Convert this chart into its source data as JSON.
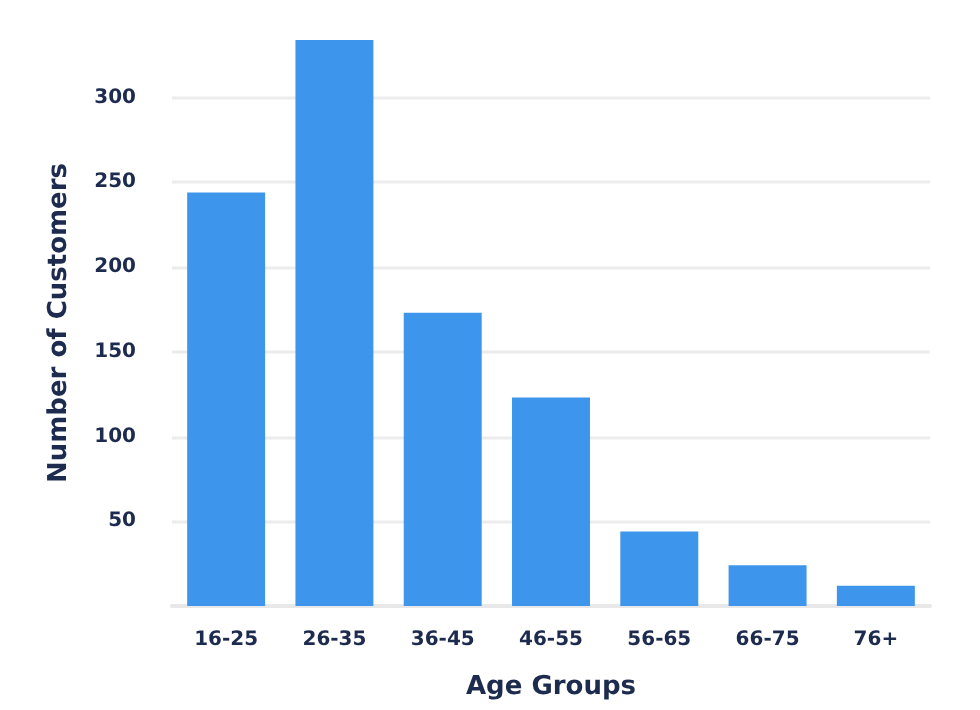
{
  "chart_data": {
    "type": "bar",
    "xlabel": "Age Groups",
    "ylabel": "Number of Customers",
    "categories": [
      "16-25",
      "26-35",
      "36-45",
      "46-55",
      "56-65",
      "66-75",
      "76+"
    ],
    "values": [
      244,
      334,
      173,
      123,
      44,
      24,
      12
    ],
    "color": "#3d96ec",
    "ylim": [
      0,
      334
    ],
    "yticks": [
      50,
      100,
      150,
      200,
      250,
      300
    ],
    "grid": "y"
  }
}
